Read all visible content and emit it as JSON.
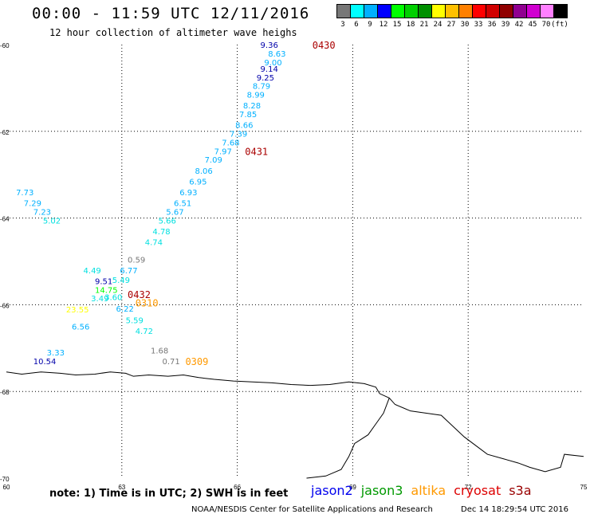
{
  "header": {
    "title": "00:00 - 11:59 UTC 12/11/2016",
    "subtitle": "12 hour collection of altimeter wave heighs"
  },
  "legend": {
    "colors": [
      "#777777",
      "#00ffff",
      "#00b0ff",
      "#0000ff",
      "#00ff00",
      "#00d000",
      "#009000",
      "#ffff00",
      "#ffc000",
      "#ff8000",
      "#ff0000",
      "#d00000",
      "#900000",
      "#900090",
      "#d000d0",
      "#ff80ff",
      "#000000"
    ],
    "labels": [
      "3",
      "6",
      "9",
      "12",
      "15",
      "18",
      "21",
      "24",
      "27",
      "30",
      "33",
      "36",
      "39",
      "42",
      "45",
      "70",
      "(ft)"
    ]
  },
  "map": {
    "lon_range": [
      60,
      75
    ],
    "lat_range": [
      -60,
      -70
    ],
    "x_ticks": [
      "60",
      "63",
      "66",
      "69",
      "72",
      "75"
    ],
    "y_ticks": [
      "-60",
      "-62",
      "-64",
      "-66",
      "-68",
      "-70"
    ],
    "grid_lon": [
      63,
      66,
      69,
      72
    ],
    "grid_lat": [
      -62,
      -64,
      -66,
      -68
    ],
    "coastline_color": "#000000",
    "grid_style": "dotted"
  },
  "points": [
    {
      "text": "9.36",
      "lon": 66.6,
      "lat": -60.0,
      "color": "#0000aa"
    },
    {
      "text": "8.63",
      "lon": 66.8,
      "lat": -60.2,
      "color": "#00b0ff"
    },
    {
      "text": "9.00",
      "lon": 66.7,
      "lat": -60.4,
      "color": "#00b0ff"
    },
    {
      "text": "9.14",
      "lon": 66.6,
      "lat": -60.55,
      "color": "#0000aa"
    },
    {
      "text": "9.25",
      "lon": 66.5,
      "lat": -60.75,
      "color": "#0000aa"
    },
    {
      "text": "8.79",
      "lon": 66.4,
      "lat": -60.95,
      "color": "#00b0ff"
    },
    {
      "text": "8.99",
      "lon": 66.25,
      "lat": -61.15,
      "color": "#00b0ff"
    },
    {
      "text": "8.28",
      "lon": 66.15,
      "lat": -61.4,
      "color": "#00b0ff"
    },
    {
      "text": "7.85",
      "lon": 66.05,
      "lat": -61.6,
      "color": "#00b0ff"
    },
    {
      "text": "8.66",
      "lon": 65.95,
      "lat": -61.85,
      "color": "#00b0ff"
    },
    {
      "text": "7.39",
      "lon": 65.8,
      "lat": -62.05,
      "color": "#00b0ff"
    },
    {
      "text": "7.68",
      "lon": 65.6,
      "lat": -62.25,
      "color": "#00b0ff"
    },
    {
      "text": "7.97",
      "lon": 65.4,
      "lat": -62.45,
      "color": "#00b0ff"
    },
    {
      "text": "7.09",
      "lon": 65.15,
      "lat": -62.65,
      "color": "#00b0ff"
    },
    {
      "text": "8.06",
      "lon": 64.9,
      "lat": -62.9,
      "color": "#00b0ff"
    },
    {
      "text": "6.95",
      "lon": 64.75,
      "lat": -63.15,
      "color": "#00b0ff"
    },
    {
      "text": "6.93",
      "lon": 64.5,
      "lat": -63.4,
      "color": "#00b0ff"
    },
    {
      "text": "6.51",
      "lon": 64.35,
      "lat": -63.65,
      "color": "#00b0ff"
    },
    {
      "text": "5.67",
      "lon": 64.15,
      "lat": -63.85,
      "color": "#00b0ff"
    },
    {
      "text": "5.66",
      "lon": 63.95,
      "lat": -64.05,
      "color": "#00e0e0"
    },
    {
      "text": "4.78",
      "lon": 63.8,
      "lat": -64.3,
      "color": "#00e0e0"
    },
    {
      "text": "4.74",
      "lon": 63.6,
      "lat": -64.55,
      "color": "#00e0e0"
    },
    {
      "text": "7.73",
      "lon": 60.25,
      "lat": -63.4,
      "color": "#00b0ff"
    },
    {
      "text": "7.29",
      "lon": 60.45,
      "lat": -63.65,
      "color": "#00b0ff"
    },
    {
      "text": "7.23",
      "lon": 60.7,
      "lat": -63.85,
      "color": "#00b0ff"
    },
    {
      "text": "5.02",
      "lon": 60.95,
      "lat": -64.05,
      "color": "#00e0e0"
    },
    {
      "text": "0.59",
      "lon": 63.15,
      "lat": -64.95,
      "color": "#777777"
    },
    {
      "text": "4.49",
      "lon": 62.0,
      "lat": -65.2,
      "color": "#00e0e0"
    },
    {
      "text": "6.77",
      "lon": 62.95,
      "lat": -65.2,
      "color": "#00b0ff"
    },
    {
      "text": "9.51",
      "lon": 62.3,
      "lat": -65.45,
      "color": "#0000aa"
    },
    {
      "text": "5.49",
      "lon": 62.75,
      "lat": -65.42,
      "color": "#00e0e0"
    },
    {
      "text": "14.75",
      "lon": 62.3,
      "lat": -65.65,
      "color": "#00ff00"
    },
    {
      "text": "3.49",
      "lon": 62.2,
      "lat": -65.85,
      "color": "#00e0e0"
    },
    {
      "text": "3.60",
      "lon": 62.55,
      "lat": -65.82,
      "color": "#00e0e0"
    },
    {
      "text": "23.55",
      "lon": 61.55,
      "lat": -66.1,
      "color": "#ffff00"
    },
    {
      "text": "6.22",
      "lon": 62.85,
      "lat": -66.08,
      "color": "#00b0ff"
    },
    {
      "text": "5.59",
      "lon": 63.1,
      "lat": -66.35,
      "color": "#00e0e0"
    },
    {
      "text": "6.56",
      "lon": 61.7,
      "lat": -66.5,
      "color": "#00b0ff"
    },
    {
      "text": "4.72",
      "lon": 63.35,
      "lat": -66.6,
      "color": "#00e0e0"
    },
    {
      "text": "1.68",
      "lon": 63.75,
      "lat": -67.05,
      "color": "#777777"
    },
    {
      "text": "3.33",
      "lon": 61.05,
      "lat": -67.1,
      "color": "#00b0ff"
    },
    {
      "text": "0.71",
      "lon": 64.05,
      "lat": -67.3,
      "color": "#777777"
    },
    {
      "text": "10.54",
      "lon": 60.7,
      "lat": -67.3,
      "color": "#0000aa"
    }
  ],
  "time_labels": [
    {
      "text": "0430",
      "lon": 67.95,
      "lat": -60.0,
      "color": "#aa0000"
    },
    {
      "text": "0431",
      "lon": 66.2,
      "lat": -62.45,
      "color": "#aa0000"
    },
    {
      "text": "0432",
      "lon": 63.15,
      "lat": -65.75,
      "color": "#aa0000"
    },
    {
      "text": "0310",
      "lon": 63.35,
      "lat": -65.95,
      "color": "#ff9900"
    },
    {
      "text": "0309",
      "lon": 64.65,
      "lat": -67.3,
      "color": "#ff9900"
    }
  ],
  "note": "note: 1) Time is in UTC; 2) SWH is in feet",
  "satellites": [
    {
      "name": "jason2",
      "color": "#0000ee"
    },
    {
      "name": "jason3",
      "color": "#009900"
    },
    {
      "name": "altika",
      "color": "#ff9900"
    },
    {
      "name": "cryosat",
      "color": "#dd0000"
    },
    {
      "name": "s3a",
      "color": "#990000"
    }
  ],
  "footer": {
    "center": "NOAA/NESDIS Center for Satellite Applications and Research",
    "date": "Dec 14 18:29:54 UTC 2016"
  }
}
